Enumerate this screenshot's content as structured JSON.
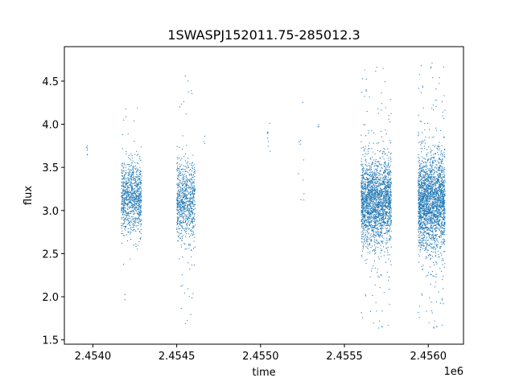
{
  "chart_data": {
    "type": "scatter",
    "title": "1SWASPJ152011.75-285012.3",
    "xlabel": "time",
    "ylabel": "flux",
    "x_offset_label": "1e6",
    "xlim": [
      2453830,
      2456210
    ],
    "ylim": [
      1.45,
      4.9
    ],
    "x_ticks": [
      2454000,
      2454500,
      2455000,
      2455500,
      2456000
    ],
    "x_tick_labels": [
      "2.4540",
      "2.4545",
      "2.4550",
      "2.4555",
      "2.4560"
    ],
    "y_ticks": [
      1.5,
      2.0,
      2.5,
      3.0,
      3.5,
      4.0,
      4.5
    ],
    "y_tick_labels": [
      "1.5",
      "2.0",
      "2.5",
      "3.0",
      "3.5",
      "4.0",
      "4.5"
    ],
    "grid": false,
    "marker_color": "#1f77b4",
    "segments": [
      {
        "x_start": 2453960,
        "x_end": 2453970,
        "y_center": 3.7,
        "y_spread": 0.08,
        "count": 6,
        "outlier_range": [
          3.6,
          3.75
        ]
      },
      {
        "x_start": 2454170,
        "x_end": 2454290,
        "y_center": 3.15,
        "y_spread": 0.42,
        "count": 900,
        "outlier_range": [
          1.88,
          4.25
        ]
      },
      {
        "x_start": 2454500,
        "x_end": 2454610,
        "y_center": 3.1,
        "y_spread": 0.45,
        "count": 800,
        "outlier_range": [
          1.68,
          4.65
        ]
      },
      {
        "x_start": 2454660,
        "x_end": 2454670,
        "y_center": 3.8,
        "y_spread": 0.06,
        "count": 3,
        "outlier_range": [
          3.75,
          3.9
        ]
      },
      {
        "x_start": 2455040,
        "x_end": 2455060,
        "y_center": 3.95,
        "y_spread": 0.15,
        "count": 8,
        "outlier_range": [
          3.65,
          4.15
        ]
      },
      {
        "x_start": 2455220,
        "x_end": 2455260,
        "y_center": 3.6,
        "y_spread": 0.35,
        "count": 10,
        "outlier_range": [
          3.07,
          4.38
        ]
      },
      {
        "x_start": 2455340,
        "x_end": 2455350,
        "y_center": 4.0,
        "y_spread": 0.1,
        "count": 3,
        "outlier_range": [
          3.9,
          4.1
        ]
      },
      {
        "x_start": 2455600,
        "x_end": 2455780,
        "y_center": 3.1,
        "y_spread": 0.5,
        "count": 2200,
        "outlier_range": [
          1.6,
          4.7
        ]
      },
      {
        "x_start": 2455940,
        "x_end": 2456100,
        "y_center": 3.1,
        "y_spread": 0.55,
        "count": 2300,
        "outlier_range": [
          1.6,
          4.75
        ]
      }
    ]
  }
}
